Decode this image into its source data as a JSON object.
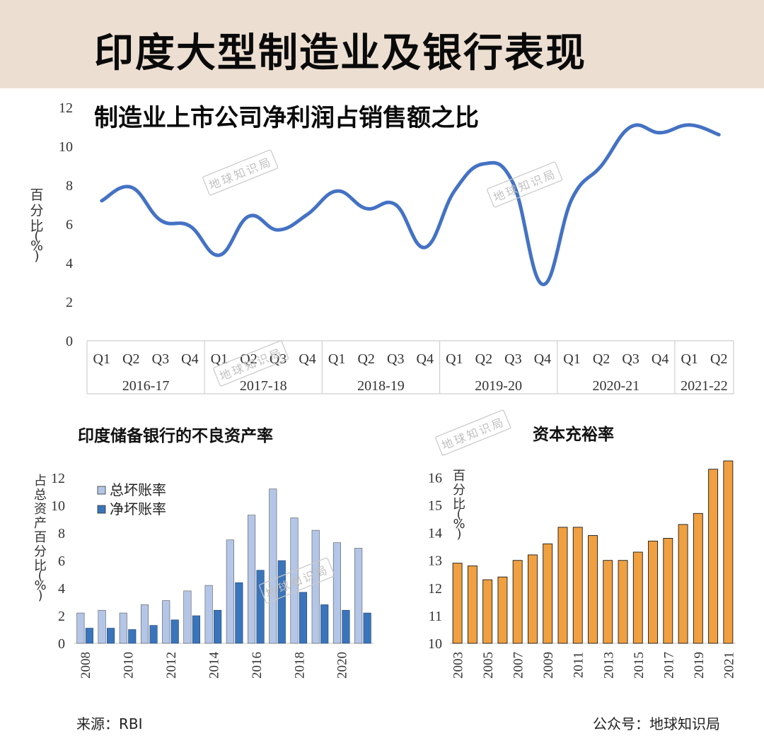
{
  "page": {
    "title": "印度大型制造业及银行表现",
    "source": "来源：RBI",
    "account": "公众号：地球知识局",
    "watermark": "地球知识局"
  },
  "chart_data": [
    {
      "id": "profit",
      "type": "line",
      "title": "制造业上市公司净利润占销售额之比",
      "ylabel": "百分比 (%)",
      "ylim": [
        0,
        12
      ],
      "yticks": [
        0,
        2,
        4,
        6,
        8,
        10,
        12
      ],
      "color": "#4472c4",
      "x_quarters": [
        "Q1",
        "Q2",
        "Q3",
        "Q4",
        "Q1",
        "Q2",
        "Q3",
        "Q4",
        "Q1",
        "Q2",
        "Q3",
        "Q4",
        "Q1",
        "Q2",
        "Q3",
        "Q4",
        "Q1",
        "Q2",
        "Q3",
        "Q4",
        "Q1",
        "Q2"
      ],
      "x_groups": [
        {
          "label": "2016-17",
          "count": 4
        },
        {
          "label": "2017-18",
          "count": 4
        },
        {
          "label": "2018-19",
          "count": 4
        },
        {
          "label": "2019-20",
          "count": 4
        },
        {
          "label": "2020-21",
          "count": 4
        },
        {
          "label": "2021-22",
          "count": 2
        }
      ],
      "values": [
        7.2,
        7.9,
        6.2,
        5.9,
        4.4,
        6.4,
        5.7,
        6.5,
        7.7,
        6.8,
        7.0,
        4.8,
        7.7,
        9.1,
        8.1,
        2.9,
        7.3,
        9.0,
        11.0,
        10.7,
        11.1,
        10.6
      ]
    },
    {
      "id": "npa",
      "type": "bar",
      "title": "印度储备银行的不良资产率",
      "ylabel": "占总资产百分比 (%)",
      "ylim": [
        0,
        12
      ],
      "yticks": [
        0,
        2,
        4,
        6,
        8,
        10,
        12
      ],
      "years": [
        2008,
        2009,
        2010,
        2011,
        2012,
        2013,
        2014,
        2015,
        2016,
        2017,
        2018,
        2019,
        2020,
        2021
      ],
      "xtick_labels": [
        "2008",
        "2010",
        "2012",
        "2014",
        "2016",
        "2018",
        "2020"
      ],
      "series": [
        {
          "name": "总坏账率",
          "color": "#b4c6e7",
          "values": [
            2.2,
            2.4,
            2.2,
            2.8,
            3.1,
            3.8,
            4.2,
            7.5,
            9.3,
            11.2,
            9.1,
            8.2,
            7.3,
            6.9
          ]
        },
        {
          "name": "净坏账率",
          "color": "#3a75bb",
          "values": [
            1.1,
            1.1,
            1.0,
            1.3,
            1.7,
            2.0,
            2.4,
            4.4,
            5.3,
            6.0,
            3.7,
            2.8,
            2.4,
            2.2
          ]
        }
      ]
    },
    {
      "id": "car",
      "type": "bar",
      "title": "资本充裕率",
      "ylabel": "百分比 (%)",
      "ylim": [
        10,
        16.6
      ],
      "yticks": [
        10,
        11,
        12,
        13,
        14,
        15,
        16
      ],
      "color": "#f0a040",
      "years": [
        2003,
        2004,
        2005,
        2006,
        2007,
        2008,
        2009,
        2010,
        2011,
        2012,
        2013,
        2014,
        2015,
        2016,
        2017,
        2018,
        2019,
        2020,
        2021
      ],
      "xtick_labels": [
        "2003",
        "2005",
        "2007",
        "2009",
        "2011",
        "2013",
        "2015",
        "2017",
        "2019",
        "2021"
      ],
      "values": [
        12.9,
        12.8,
        12.3,
        12.4,
        13.0,
        13.2,
        13.6,
        14.2,
        14.2,
        13.9,
        13.0,
        13.0,
        13.3,
        13.7,
        13.8,
        14.3,
        14.7,
        16.3,
        16.6
      ]
    }
  ]
}
